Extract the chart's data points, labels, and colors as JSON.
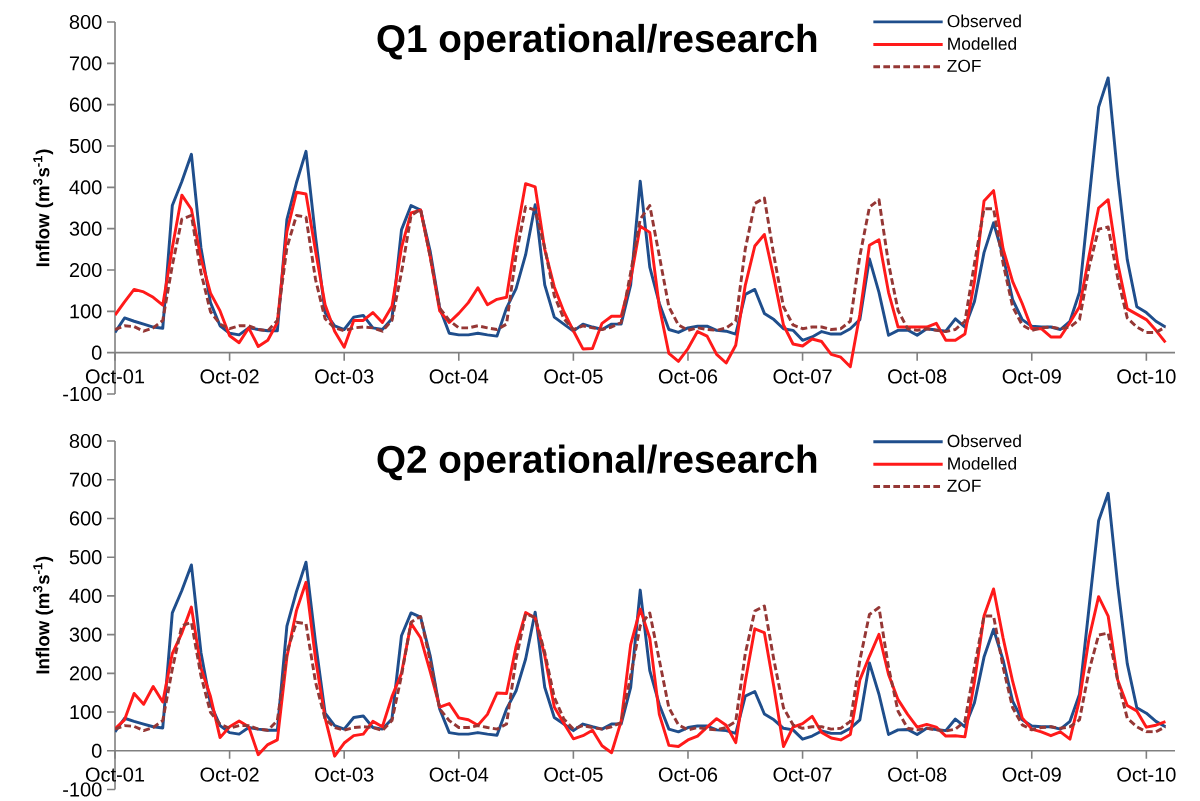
{
  "chart_data": [
    {
      "type": "line",
      "title": "Q1 operational/research",
      "ylabel": "Inflow (m$^{3}$s$^{-1}$)",
      "x": [
        "2001-10",
        "2001-11",
        "2001-12",
        "2002-01",
        "2002-02",
        "2002-03",
        "2002-04",
        "2002-05",
        "2002-06",
        "2002-07",
        "2002-08",
        "2002-09",
        "2002-10",
        "2002-11",
        "2002-12",
        "2003-01",
        "2003-02",
        "2003-03",
        "2003-04",
        "2003-05",
        "2003-06",
        "2003-07",
        "2003-08",
        "2003-09",
        "2003-10",
        "2003-11",
        "2003-12",
        "2004-01",
        "2004-02",
        "2004-03",
        "2004-04",
        "2004-05",
        "2004-06",
        "2004-07",
        "2004-08",
        "2004-09",
        "2004-10",
        "2004-11",
        "2004-12",
        "2005-01",
        "2005-02",
        "2005-03",
        "2005-04",
        "2005-05",
        "2005-06",
        "2005-07",
        "2005-08",
        "2005-09",
        "2005-10",
        "2005-11",
        "2005-12",
        "2006-01",
        "2006-02",
        "2006-03",
        "2006-04",
        "2006-05",
        "2006-06",
        "2006-07",
        "2006-08",
        "2006-09",
        "2006-10",
        "2006-11",
        "2006-12",
        "2007-01",
        "2007-02",
        "2007-03",
        "2007-04",
        "2007-05",
        "2007-06",
        "2007-07",
        "2007-08",
        "2007-09",
        "2007-10",
        "2007-11",
        "2007-12",
        "2008-01",
        "2008-02",
        "2008-03",
        "2008-04",
        "2008-05",
        "2008-06",
        "2008-07",
        "2008-08",
        "2008-09",
        "2008-10",
        "2008-11",
        "2008-12",
        "2009-01",
        "2009-02",
        "2009-03",
        "2009-04",
        "2009-05",
        "2009-06",
        "2009-07",
        "2009-08",
        "2009-09",
        "2009-10",
        "2009-11",
        "2009-12",
        "2010-01",
        "2010-02",
        "2010-03",
        "2010-04",
        "2010-05",
        "2010-06",
        "2010-07",
        "2010-08",
        "2010-09",
        "2010-10",
        "2010-11",
        "2010-12"
      ],
      "xlim": [
        "2001-10",
        "2011-01"
      ],
      "xticks": [
        {
          "value": "2001-10",
          "label": "Oct-01"
        },
        {
          "value": "2002-10",
          "label": "Oct-02"
        },
        {
          "value": "2003-10",
          "label": "Oct-03"
        },
        {
          "value": "2004-10",
          "label": "Oct-04"
        },
        {
          "value": "2005-10",
          "label": "Oct-05"
        },
        {
          "value": "2006-10",
          "label": "Oct-06"
        },
        {
          "value": "2007-10",
          "label": "Oct-07"
        },
        {
          "value": "2008-10",
          "label": "Oct-08"
        },
        {
          "value": "2009-10",
          "label": "Oct-09"
        },
        {
          "value": "2010-10",
          "label": "Oct-10"
        }
      ],
      "ylim": [
        -100,
        800
      ],
      "yticks": [
        -100,
        0,
        100,
        200,
        300,
        400,
        500,
        600,
        700,
        800
      ],
      "legend": "top right",
      "series": [
        {
          "name": "Observed",
          "color": "#1f4e8c",
          "line_style": "solid",
          "values": [
            49,
            84,
            76,
            69,
            62,
            59,
            356,
            414,
            480,
            254,
            121,
            65,
            47,
            43,
            60,
            56,
            53,
            53,
            322,
            411,
            487,
            280,
            97,
            65,
            56,
            86,
            90,
            60,
            56,
            82,
            297,
            356,
            345,
            246,
            108,
            47,
            43,
            43,
            47,
            43,
            40,
            108,
            155,
            237,
            358,
            164,
            86,
            69,
            52,
            69,
            62,
            56,
            69,
            69,
            164,
            415,
            207,
            119,
            56,
            49,
            60,
            64,
            64,
            54,
            52,
            45,
            141,
            153,
            95,
            80,
            58,
            54,
            30,
            38,
            51,
            45,
            45,
            58,
            80,
            227,
            146,
            42,
            54,
            55,
            42,
            58,
            55,
            52,
            82,
            62,
            124,
            242,
            314,
            234,
            128,
            80,
            64,
            62,
            62,
            56,
            76,
            146,
            370,
            594,
            665,
            427,
            225,
            111,
            97,
            76,
            62
          ]
        },
        {
          "name": "Modelled",
          "color": "#ff1a1a",
          "line_style": "solid",
          "values": [
            91,
            123,
            153,
            147,
            134,
            115,
            254,
            381,
            347,
            228,
            144,
            101,
            41,
            24,
            60,
            15,
            30,
            73,
            293,
            388,
            384,
            246,
            116,
            52,
            13,
            78,
            78,
            97,
            73,
            112,
            254,
            338,
            345,
            233,
            101,
            73,
            95,
            121,
            157,
            116,
            129,
            134,
            280,
            409,
            401,
            250,
            159,
            99,
            53,
            9,
            10,
            71,
            88,
            88,
            177,
            306,
            291,
            111,
            -2,
            -21,
            10,
            51,
            40,
            -4,
            -25,
            18,
            163,
            258,
            286,
            181,
            67,
            21,
            16,
            33,
            27,
            -4,
            -11,
            -34,
            93,
            260,
            273,
            146,
            62,
            62,
            62,
            62,
            71,
            30,
            30,
            45,
            172,
            367,
            392,
            251,
            172,
            119,
            58,
            58,
            38,
            38,
            73,
            111,
            234,
            350,
            370,
            216,
            106,
            93,
            80,
            54,
            25
          ]
        },
        {
          "name": "ZOF",
          "color": "#953735",
          "line_style": "dashed",
          "values": [
            56,
            65,
            63,
            52,
            60,
            78,
            211,
            323,
            332,
            194,
            99,
            69,
            58,
            65,
            65,
            56,
            53,
            78,
            254,
            332,
            328,
            177,
            82,
            60,
            53,
            60,
            62,
            60,
            52,
            78,
            194,
            332,
            347,
            233,
            108,
            78,
            60,
            60,
            65,
            60,
            56,
            69,
            237,
            353,
            345,
            254,
            138,
            82,
            56,
            65,
            60,
            56,
            62,
            73,
            194,
            323,
            356,
            234,
            111,
            67,
            54,
            60,
            56,
            54,
            60,
            76,
            251,
            361,
            374,
            234,
            111,
            67,
            58,
            62,
            62,
            56,
            58,
            76,
            234,
            352,
            370,
            216,
            102,
            58,
            54,
            58,
            54,
            51,
            56,
            76,
            216,
            348,
            348,
            216,
            111,
            67,
            54,
            60,
            62,
            58,
            62,
            80,
            207,
            299,
            304,
            181,
            84,
            62,
            49,
            49,
            62
          ]
        }
      ]
    },
    {
      "type": "line",
      "title": "Q2 operational/research",
      "ylabel": "Inflow (m$^{3}$s$^{-1}$)",
      "x": [
        "2001-10",
        "2001-11",
        "2001-12",
        "2002-01",
        "2002-02",
        "2002-03",
        "2002-04",
        "2002-05",
        "2002-06",
        "2002-07",
        "2002-08",
        "2002-09",
        "2002-10",
        "2002-11",
        "2002-12",
        "2003-01",
        "2003-02",
        "2003-03",
        "2003-04",
        "2003-05",
        "2003-06",
        "2003-07",
        "2003-08",
        "2003-09",
        "2003-10",
        "2003-11",
        "2003-12",
        "2004-01",
        "2004-02",
        "2004-03",
        "2004-04",
        "2004-05",
        "2004-06",
        "2004-07",
        "2004-08",
        "2004-09",
        "2004-10",
        "2004-11",
        "2004-12",
        "2005-01",
        "2005-02",
        "2005-03",
        "2005-04",
        "2005-05",
        "2005-06",
        "2005-07",
        "2005-08",
        "2005-09",
        "2005-10",
        "2005-11",
        "2005-12",
        "2006-01",
        "2006-02",
        "2006-03",
        "2006-04",
        "2006-05",
        "2006-06",
        "2006-07",
        "2006-08",
        "2006-09",
        "2006-10",
        "2006-11",
        "2006-12",
        "2007-01",
        "2007-02",
        "2007-03",
        "2007-04",
        "2007-05",
        "2007-06",
        "2007-07",
        "2007-08",
        "2007-09",
        "2007-10",
        "2007-11",
        "2007-12",
        "2008-01",
        "2008-02",
        "2008-03",
        "2008-04",
        "2008-05",
        "2008-06",
        "2008-07",
        "2008-08",
        "2008-09",
        "2008-10",
        "2008-11",
        "2008-12",
        "2009-01",
        "2009-02",
        "2009-03",
        "2009-04",
        "2009-05",
        "2009-06",
        "2009-07",
        "2009-08",
        "2009-09",
        "2009-10",
        "2009-11",
        "2009-12",
        "2010-01",
        "2010-02",
        "2010-03",
        "2010-04",
        "2010-05",
        "2010-06",
        "2010-07",
        "2010-08",
        "2010-09",
        "2010-10",
        "2010-11",
        "2010-12"
      ],
      "xlim": [
        "2001-10",
        "2011-01"
      ],
      "xticks": [
        {
          "value": "2001-10",
          "label": "Oct-01"
        },
        {
          "value": "2002-10",
          "label": "Oct-02"
        },
        {
          "value": "2003-10",
          "label": "Oct-03"
        },
        {
          "value": "2004-10",
          "label": "Oct-04"
        },
        {
          "value": "2005-10",
          "label": "Oct-05"
        },
        {
          "value": "2006-10",
          "label": "Oct-06"
        },
        {
          "value": "2007-10",
          "label": "Oct-07"
        },
        {
          "value": "2008-10",
          "label": "Oct-08"
        },
        {
          "value": "2009-10",
          "label": "Oct-09"
        },
        {
          "value": "2010-10",
          "label": "Oct-10"
        }
      ],
      "ylim": [
        -100,
        800
      ],
      "yticks": [
        -100,
        0,
        100,
        200,
        300,
        400,
        500,
        600,
        700,
        800
      ],
      "legend": "top right",
      "series": [
        {
          "name": "Observed",
          "color": "#1f4e8c",
          "line_style": "solid",
          "values": [
            49,
            84,
            76,
            69,
            62,
            59,
            356,
            414,
            480,
            254,
            121,
            65,
            47,
            43,
            60,
            56,
            53,
            53,
            322,
            411,
            487,
            280,
            97,
            65,
            56,
            86,
            90,
            60,
            56,
            82,
            297,
            356,
            345,
            246,
            108,
            47,
            43,
            43,
            47,
            43,
            40,
            108,
            155,
            237,
            358,
            164,
            86,
            69,
            52,
            69,
            62,
            56,
            69,
            69,
            164,
            415,
            207,
            119,
            56,
            49,
            60,
            64,
            64,
            54,
            52,
            45,
            141,
            153,
            95,
            80,
            58,
            54,
            30,
            38,
            51,
            45,
            45,
            58,
            80,
            227,
            146,
            42,
            54,
            55,
            42,
            58,
            55,
            52,
            82,
            62,
            124,
            242,
            314,
            234,
            128,
            80,
            64,
            62,
            62,
            56,
            76,
            146,
            370,
            594,
            665,
            427,
            225,
            111,
            97,
            76,
            62
          ]
        },
        {
          "name": "Modelled",
          "color": "#ff1a1a",
          "line_style": "solid",
          "values": [
            57,
            80,
            148,
            120,
            166,
            126,
            251,
            304,
            371,
            214,
            140,
            34,
            62,
            77,
            62,
            -10,
            16,
            28,
            242,
            362,
            435,
            237,
            85,
            -14,
            20,
            39,
            43,
            76,
            62,
            140,
            200,
            329,
            292,
            205,
            113,
            122,
            85,
            80,
            66,
            94,
            149,
            148,
            269,
            357,
            343,
            246,
            113,
            71,
            31,
            39,
            53,
            13,
            -5,
            76,
            274,
            366,
            291,
            94,
            14,
            11,
            28,
            38,
            61,
            83,
            66,
            21,
            179,
            315,
            305,
            164,
            11,
            61,
            70,
            89,
            47,
            33,
            28,
            42,
            183,
            244,
            301,
            197,
            132,
            94,
            61,
            68,
            61,
            38,
            39,
            36,
            179,
            348,
            418,
            291,
            179,
            85,
            56,
            49,
            39,
            49,
            30,
            132,
            291,
            398,
            348,
            183,
            117,
            103,
            61,
            66,
            75
          ]
        },
        {
          "name": "ZOF",
          "color": "#953735",
          "line_style": "dashed",
          "values": [
            56,
            65,
            63,
            52,
            60,
            78,
            211,
            323,
            332,
            194,
            99,
            69,
            58,
            65,
            65,
            56,
            53,
            78,
            254,
            332,
            328,
            177,
            82,
            60,
            53,
            60,
            62,
            60,
            52,
            78,
            194,
            332,
            347,
            233,
            108,
            78,
            60,
            60,
            65,
            60,
            56,
            69,
            237,
            353,
            345,
            254,
            138,
            82,
            56,
            65,
            60,
            56,
            62,
            73,
            194,
            323,
            356,
            234,
            111,
            67,
            54,
            60,
            56,
            54,
            60,
            76,
            251,
            361,
            374,
            234,
            111,
            67,
            58,
            62,
            62,
            56,
            58,
            76,
            234,
            352,
            370,
            216,
            102,
            58,
            54,
            58,
            54,
            51,
            56,
            76,
            216,
            348,
            348,
            216,
            111,
            67,
            54,
            60,
            62,
            58,
            62,
            80,
            207,
            299,
            304,
            181,
            84,
            62,
            49,
            49,
            62
          ]
        }
      ]
    }
  ]
}
